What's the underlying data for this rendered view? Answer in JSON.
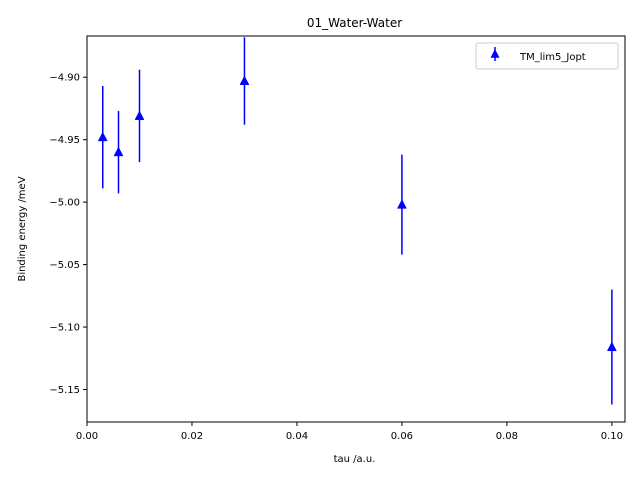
{
  "chart_data": {
    "type": "scatter",
    "title": "01_Water-Water",
    "xlabel": "tau /a.u.",
    "ylabel": "Binding energy /meV",
    "xlim": [
      0.0,
      0.1025
    ],
    "ylim": [
      -5.176,
      -4.867
    ],
    "xticks": [
      0.0,
      0.02,
      0.04,
      0.06,
      0.08,
      0.1
    ],
    "xtick_labels": [
      "0.00",
      "0.02",
      "0.04",
      "0.06",
      "0.08",
      "0.10"
    ],
    "yticks": [
      -4.9,
      -4.95,
      -5.0,
      -5.05,
      -5.1,
      -5.15
    ],
    "ytick_labels": [
      "−4.90",
      "−4.95",
      "−5.00",
      "−5.05",
      "−5.10",
      "−5.15"
    ],
    "grid": false,
    "legend_position": "top-right",
    "series": [
      {
        "name": "TM_lim5_Jopt",
        "color": "#0000ff",
        "marker": "triangle-up",
        "points": [
          {
            "x": 0.003,
            "y": -4.948,
            "err": 0.041
          },
          {
            "x": 0.006,
            "y": -4.96,
            "err": 0.033
          },
          {
            "x": 0.01,
            "y": -4.931,
            "err": 0.037
          },
          {
            "x": 0.03,
            "y": -4.903,
            "err": 0.035
          },
          {
            "x": 0.06,
            "y": -5.002,
            "err": 0.04
          },
          {
            "x": 0.1,
            "y": -5.116,
            "err": 0.046
          }
        ]
      }
    ]
  }
}
